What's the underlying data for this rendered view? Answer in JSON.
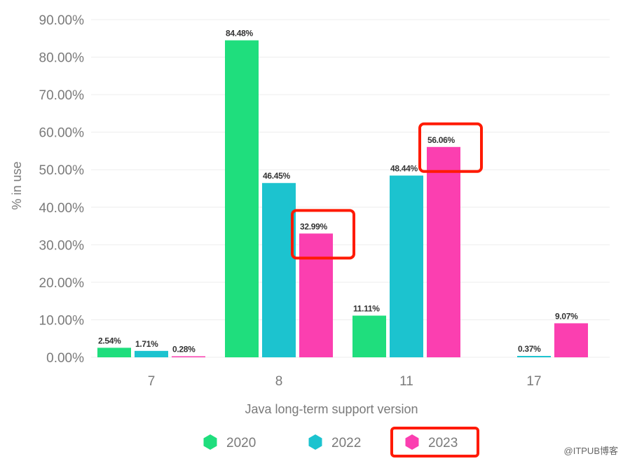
{
  "chart_data": {
    "type": "bar",
    "categories": [
      "7",
      "8",
      "11",
      "17"
    ],
    "series": [
      {
        "name": "2020",
        "values": [
          2.54,
          84.48,
          11.11,
          null
        ],
        "labels": [
          "2.54%",
          "84.48%",
          "11.11%",
          ""
        ],
        "color": "#1fde7d"
      },
      {
        "name": "2022",
        "values": [
          1.71,
          46.45,
          48.44,
          0.37
        ],
        "labels": [
          "1.71%",
          "46.45%",
          "48.44%",
          "0.37%"
        ],
        "color": "#1cc3cf"
      },
      {
        "name": "2023",
        "values": [
          0.28,
          32.99,
          56.06,
          9.07
        ],
        "labels": [
          "0.28%",
          "32.99%",
          "56.06%",
          "9.07%"
        ],
        "color": "#fb3fb0"
      }
    ],
    "yticks": [
      "0.00%",
      "10.00%",
      "20.00%",
      "30.00%",
      "40.00%",
      "50.00%",
      "60.00%",
      "70.00%",
      "80.00%",
      "90.00%"
    ],
    "ylim": [
      0,
      90
    ],
    "xlabel": "Java long-term support version",
    "ylabel": "% in use",
    "legend_position": "bottom",
    "highlighted": [
      {
        "category": "8",
        "series": "2023"
      },
      {
        "category": "11",
        "series": "2023"
      },
      {
        "legend": "2023"
      }
    ],
    "highlight_color": "#ff1a00"
  },
  "watermark": "@ITPUB博客"
}
